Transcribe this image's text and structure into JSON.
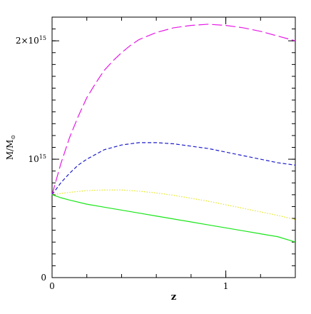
{
  "chart_data": {
    "type": "line",
    "title": "",
    "xlabel": "z",
    "ylabel": "M/M",
    "ylabel_sub": "⊙",
    "xlim": [
      0,
      1.4
    ],
    "ylim": [
      0,
      2200000000000000.0
    ],
    "x_ticks": [
      {
        "value": 0,
        "base": "0",
        "exp": ""
      },
      {
        "value": 1,
        "base": "1",
        "exp": ""
      }
    ],
    "y_ticks": [
      {
        "value": 0,
        "base": "0",
        "exp": ""
      },
      {
        "value": 1000000000000000.0,
        "base": "10",
        "exp": "15"
      },
      {
        "value": 2000000000000000.0,
        "base": "2×10",
        "exp": "15"
      }
    ],
    "x_minor_step": 0.2,
    "y_minor_step": 100000000000000.0,
    "legend": "none",
    "series": [
      {
        "color": "#e619e6",
        "dash": "long-dash",
        "x": [
          0.0,
          0.05,
          0.1,
          0.15,
          0.2,
          0.25,
          0.3,
          0.35,
          0.4,
          0.45,
          0.5,
          0.6,
          0.7,
          0.8,
          0.9,
          1.0,
          1.1,
          1.2,
          1.3,
          1.4
        ],
        "y": [
          700000000000000.0,
          960000000000000.0,
          1180000000000000.0,
          1360000000000000.0,
          1520000000000000.0,
          1640000000000000.0,
          1750000000000000.0,
          1830000000000000.0,
          1900000000000000.0,
          1960000000000000.0,
          2010000000000000.0,
          2070000000000000.0,
          2110000000000000.0,
          2130000000000000.0,
          2140000000000000.0,
          2130000000000000.0,
          2110000000000000.0,
          2080000000000000.0,
          2040000000000000.0,
          2000000000000000.0
        ]
      },
      {
        "color": "#1f1fcc",
        "dash": "short-dash",
        "x": [
          0.0,
          0.05,
          0.1,
          0.15,
          0.2,
          0.25,
          0.3,
          0.35,
          0.4,
          0.5,
          0.6,
          0.7,
          0.8,
          0.9,
          1.0,
          1.1,
          1.2,
          1.3,
          1.4
        ],
        "y": [
          700000000000000.0,
          800000000000000.0,
          880000000000000.0,
          950000000000000.0,
          1000000000000000.0,
          1040000000000000.0,
          1080000000000000.0,
          1100000000000000.0,
          1120000000000000.0,
          1140000000000000.0,
          1140000000000000.0,
          1130000000000000.0,
          1110000000000000.0,
          1090000000000000.0,
          1060000000000000.0,
          1030000000000000.0,
          1000000000000000.0,
          970000000000000.0,
          950000000000000.0
        ]
      },
      {
        "color": "#e6e620",
        "dash": "dotted",
        "x": [
          0.0,
          0.1,
          0.2,
          0.3,
          0.4,
          0.5,
          0.6,
          0.7,
          0.8,
          0.9,
          1.0,
          1.1,
          1.2,
          1.3,
          1.4
        ],
        "y": [
          700000000000000.0,
          720000000000000.0,
          735000000000000.0,
          740000000000000.0,
          740000000000000.0,
          730000000000000.0,
          715000000000000.0,
          695000000000000.0,
          670000000000000.0,
          645000000000000.0,
          615000000000000.0,
          585000000000000.0,
          555000000000000.0,
          525000000000000.0,
          490000000000000.0
        ]
      },
      {
        "color": "#19e619",
        "dash": "solid",
        "x": [
          0.0,
          0.05,
          0.1,
          0.2,
          0.3,
          0.4,
          0.5,
          0.6,
          0.7,
          0.8,
          0.9,
          1.0,
          1.1,
          1.2,
          1.3,
          1.4
        ],
        "y": [
          700000000000000.0,
          675000000000000.0,
          655000000000000.0,
          620000000000000.0,
          595000000000000.0,
          570000000000000.0,
          545000000000000.0,
          520000000000000.0,
          495000000000000.0,
          470000000000000.0,
          445000000000000.0,
          420000000000000.0,
          395000000000000.0,
          370000000000000.0,
          345000000000000.0,
          300000000000000.0
        ]
      }
    ]
  }
}
